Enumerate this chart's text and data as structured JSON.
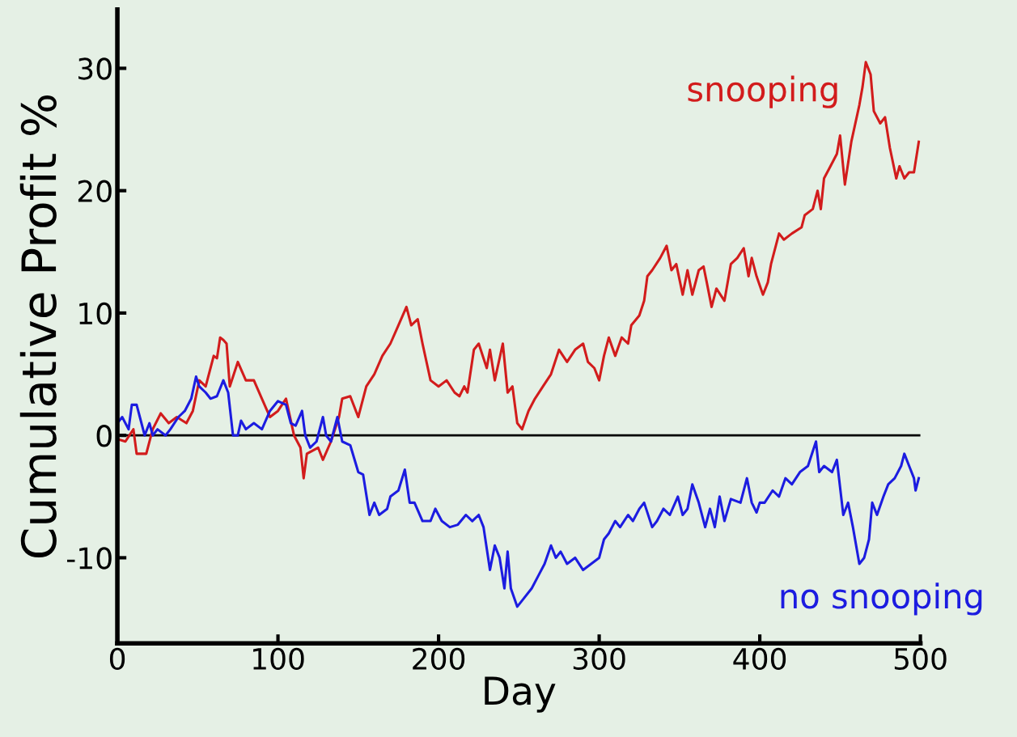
{
  "chart_data": {
    "type": "line",
    "xlabel": "Day",
    "ylabel": "Cumulative Profit %",
    "xlim": [
      0,
      500
    ],
    "ylim": [
      -17,
      34.8
    ],
    "xticks": [
      0,
      100,
      200,
      300,
      400,
      500
    ],
    "yticks": [
      {
        "value": -10,
        "label": "-10"
      },
      0,
      10,
      20,
      30
    ],
    "grid": false,
    "legend": false,
    "marker": "none",
    "line_style": "solid",
    "ref_lines": [
      {
        "axis": "y",
        "value": 0,
        "color": "#000000"
      }
    ],
    "series": [
      {
        "name": "snooping",
        "color": "#d21c1c",
        "x": [
          0,
          5,
          10,
          12,
          18,
          22,
          27,
          32,
          37,
          43,
          47,
          51,
          55,
          60,
          62,
          64,
          66,
          68,
          70,
          75,
          80,
          85,
          90,
          95,
          100,
          105,
          110,
          114,
          116,
          118,
          125,
          128,
          133,
          138,
          140,
          145,
          150,
          155,
          160,
          165,
          170,
          175,
          180,
          183,
          187,
          190,
          195,
          200,
          205,
          210,
          213,
          216,
          218,
          222,
          225,
          230,
          232,
          235,
          240,
          243,
          246,
          249,
          252,
          256,
          260,
          265,
          270,
          275,
          280,
          285,
          290,
          293,
          297,
          300,
          303,
          306,
          310,
          314,
          318,
          320,
          325,
          328,
          330,
          333,
          338,
          342,
          345,
          348,
          352,
          355,
          358,
          362,
          365,
          367,
          370,
          373,
          378,
          382,
          386,
          390,
          393,
          395,
          398,
          402,
          405,
          407,
          412,
          415,
          420,
          426,
          428,
          433,
          436,
          438,
          440,
          444,
          448,
          450,
          453,
          457,
          462,
          464,
          466,
          469,
          471,
          475,
          478,
          481,
          485,
          487,
          490,
          493,
          496,
          499
        ],
        "values": [
          -0.3,
          -0.5,
          0.5,
          -1.5,
          -1.5,
          0.5,
          1.8,
          1.0,
          1.5,
          1.0,
          2.0,
          4.5,
          4,
          6.5,
          6.3,
          8.0,
          7.8,
          7.5,
          4.0,
          6,
          4.5,
          4.5,
          3,
          1.5,
          2,
          3,
          0,
          -1,
          -3.5,
          -1.5,
          -1,
          -2,
          -0.5,
          1.5,
          3,
          3.2,
          1.5,
          4,
          5,
          6.5,
          7.5,
          9,
          10.5,
          9,
          9.5,
          7.5,
          4.5,
          4,
          4.5,
          3.5,
          3.2,
          4,
          3.5,
          7,
          7.5,
          5.5,
          7,
          4.5,
          7.5,
          3.5,
          4,
          1,
          0.5,
          2,
          3,
          4,
          5,
          7,
          6,
          7,
          7.5,
          6,
          5.5,
          4.5,
          6.5,
          8,
          6.5,
          8,
          7.5,
          9,
          9.8,
          11,
          13,
          13.5,
          14.5,
          15.5,
          13.5,
          14,
          11.5,
          13.5,
          11.5,
          13.5,
          13.8,
          12.5,
          10.5,
          12,
          11,
          14,
          14.5,
          15.3,
          13,
          14.5,
          13,
          11.5,
          12.5,
          14,
          16.5,
          16,
          16.5,
          17,
          18,
          18.5,
          20,
          18.5,
          21,
          22,
          23,
          24.5,
          20.5,
          24,
          27,
          28.5,
          30.5,
          29.5,
          26.5,
          25.5,
          26,
          23.5,
          21,
          22,
          21,
          21.5,
          21.5,
          24
        ]
      },
      {
        "name": "no snooping",
        "color": "#1c1ce0",
        "x": [
          0,
          3,
          7,
          9,
          12,
          14,
          17,
          20,
          22,
          25,
          30,
          33,
          38,
          42,
          46,
          49,
          51,
          55,
          58,
          62,
          66,
          69,
          72,
          75,
          77,
          80,
          85,
          90,
          95,
          100,
          105,
          108,
          111,
          115,
          117,
          120,
          124,
          128,
          130,
          133,
          137,
          140,
          145,
          150,
          153,
          157,
          160,
          163,
          168,
          170,
          175,
          179,
          182,
          185,
          190,
          195,
          198,
          202,
          207,
          212,
          217,
          221,
          225,
          228,
          232,
          235,
          238,
          241,
          243,
          245,
          249,
          252,
          258,
          262,
          266,
          270,
          273,
          276,
          280,
          285,
          290,
          295,
          300,
          303,
          306,
          310,
          313,
          318,
          321,
          325,
          328,
          333,
          336,
          340,
          344,
          349,
          352,
          355,
          358,
          362,
          366,
          369,
          372,
          375,
          378,
          382,
          388,
          392,
          395,
          398,
          400,
          403,
          408,
          412,
          416,
          420,
          425,
          430,
          435,
          437,
          440,
          445,
          448,
          452,
          455,
          458,
          462,
          465,
          468,
          470,
          473,
          477,
          480,
          484,
          488,
          490,
          493,
          496,
          497,
          499
        ],
        "values": [
          1,
          1.5,
          0.5,
          2.5,
          2.5,
          1.5,
          0,
          1,
          0,
          0.5,
          0,
          0.5,
          1.5,
          2,
          3,
          4.8,
          4,
          3.5,
          3,
          3.2,
          4.5,
          3.5,
          0,
          0,
          1.2,
          0.5,
          1,
          0.5,
          2,
          2.8,
          2.5,
          1,
          0.8,
          2,
          0,
          -1,
          -0.5,
          1.5,
          0,
          -0.5,
          1.5,
          -0.5,
          -0.8,
          -3,
          -3.2,
          -6.5,
          -5.5,
          -6.5,
          -6,
          -5,
          -4.5,
          -2.8,
          -5.5,
          -5.5,
          -7,
          -7,
          -6,
          -7,
          -7.5,
          -7.3,
          -6.5,
          -7,
          -6.5,
          -7.5,
          -11,
          -9,
          -10,
          -12.5,
          -9.5,
          -12.5,
          -14,
          -13.5,
          -12.5,
          -11.5,
          -10.5,
          -9,
          -10,
          -9.5,
          -10.5,
          -10,
          -11,
          -10.5,
          -10,
          -8.5,
          -8,
          -7,
          -7.5,
          -6.5,
          -7,
          -6,
          -5.5,
          -7.5,
          -7,
          -6,
          -6.5,
          -5,
          -6.5,
          -6,
          -4,
          -5.5,
          -7.5,
          -6,
          -7.5,
          -5,
          -7,
          -5.2,
          -5.5,
          -3.5,
          -5.5,
          -6.3,
          -5.5,
          -5.5,
          -4.5,
          -5,
          -3.5,
          -4,
          -3,
          -2.5,
          -0.5,
          -3,
          -2.5,
          -3,
          -2,
          -6.5,
          -5.5,
          -7.5,
          -10.5,
          -10,
          -8.5,
          -5.5,
          -6.5,
          -5,
          -4,
          -3.5,
          -2.5,
          -1.5,
          -2.5,
          -3.5,
          -4.5,
          -3.5
        ]
      }
    ]
  }
}
